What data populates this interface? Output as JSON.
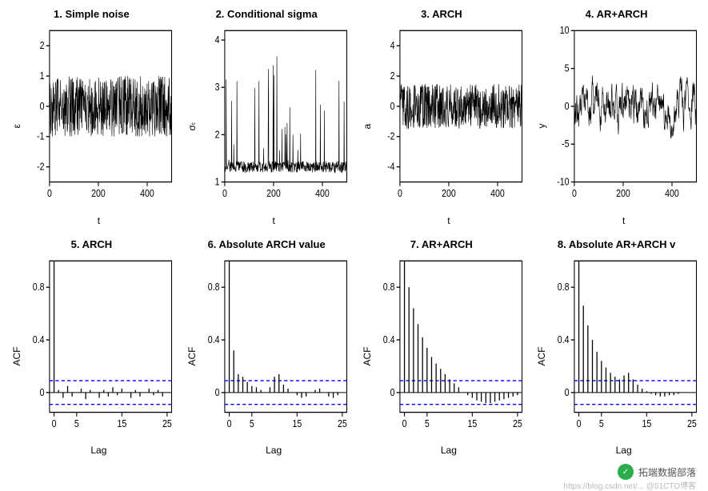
{
  "grid_cols": 4,
  "grid_rows": 2,
  "background_color": "#ffffff",
  "axis_color": "#000000",
  "line_color": "#000000",
  "ci_color": "#0000ff",
  "ci_dash": "4,3",
  "title_fontsize": 13,
  "label_fontsize": 12,
  "watermark": {
    "text": "拓端数据部落",
    "sub": "https://blog.csdn.net/... @51CTO博客",
    "icon_bg": "#2aad4a"
  },
  "panels": [
    {
      "title": "1. Simple noise",
      "type": "line",
      "xlabel": "t",
      "ylabel": "ε",
      "xlim": [
        0,
        500
      ],
      "ylim": [
        -2.5,
        2.5
      ],
      "xticks": [
        0,
        200,
        400
      ],
      "yticks": [
        -2,
        -1,
        0,
        1,
        2
      ],
      "seed": 1,
      "n": 500,
      "amp_center": 0,
      "amp_scale": 1.0
    },
    {
      "title": "2. Conditional sigma",
      "type": "line",
      "xlabel": "t",
      "ylabel": "σₜ",
      "xlim": [
        0,
        500
      ],
      "ylim": [
        1.0,
        4.2
      ],
      "xticks": [
        0,
        200,
        400
      ],
      "yticks": [
        1.0,
        2.0,
        3.0,
        4.0
      ],
      "seed": 2,
      "n": 500,
      "amp_center": 1.2,
      "amp_scale": 0.6,
      "positive_spikes": true
    },
    {
      "title": "3. ARCH",
      "type": "line",
      "xlabel": "t",
      "ylabel": "a",
      "xlim": [
        0,
        500
      ],
      "ylim": [
        -5,
        5
      ],
      "xticks": [
        0,
        200,
        400
      ],
      "yticks": [
        -4,
        -2,
        0,
        2,
        4
      ],
      "seed": 3,
      "n": 500,
      "amp_center": 0,
      "amp_scale": 1.5
    },
    {
      "title": "4. AR+ARCH",
      "type": "line",
      "xlabel": "t",
      "ylabel": "y",
      "xlim": [
        0,
        500
      ],
      "ylim": [
        -10,
        10
      ],
      "xticks": [
        0,
        200,
        400
      ],
      "yticks": [
        -10,
        -5,
        0,
        5,
        10
      ],
      "seed": 4,
      "n": 500,
      "amp_center": 0,
      "amp_scale": 3.0,
      "ar": 0.7
    },
    {
      "title": "5. ARCH",
      "type": "acf",
      "xlabel": "Lag",
      "ylabel": "ACF",
      "xlim": [
        -1,
        26
      ],
      "ylim": [
        -0.15,
        1.0
      ],
      "xticks": [
        0,
        5,
        15,
        25
      ],
      "yticks": [
        0.0,
        0.4,
        0.8
      ],
      "ci": 0.09,
      "acf_values": [
        1.0,
        0.02,
        -0.04,
        0.05,
        -0.03,
        0.0,
        0.03,
        -0.05,
        0.02,
        0.0,
        -0.04,
        0.02,
        -0.03,
        0.04,
        -0.02,
        0.03,
        0.0,
        -0.04,
        0.02,
        -0.03,
        0.0,
        0.03,
        -0.02,
        0.02,
        -0.03,
        0.0
      ]
    },
    {
      "title": "6. Absolute ARCH value",
      "type": "acf",
      "xlabel": "Lag",
      "ylabel": "ACF",
      "xlim": [
        -1,
        26
      ],
      "ylim": [
        -0.15,
        1.0
      ],
      "xticks": [
        0,
        5,
        15,
        25
      ],
      "yticks": [
        0.0,
        0.4,
        0.8
      ],
      "ci": 0.09,
      "acf_values": [
        1.0,
        0.32,
        0.14,
        0.12,
        0.08,
        0.05,
        0.04,
        0.02,
        0.0,
        0.04,
        0.12,
        0.14,
        0.06,
        0.03,
        0.0,
        -0.02,
        -0.04,
        -0.03,
        0.0,
        0.02,
        0.03,
        0.0,
        -0.03,
        -0.04,
        -0.02,
        0.0
      ]
    },
    {
      "title": "7. AR+ARCH",
      "type": "acf",
      "xlabel": "Lag",
      "ylabel": "ACF",
      "xlim": [
        -1,
        26
      ],
      "ylim": [
        -0.15,
        1.0
      ],
      "xticks": [
        0,
        5,
        15,
        25
      ],
      "yticks": [
        0.0,
        0.4,
        0.8
      ],
      "ci": 0.09,
      "acf_values": [
        1.0,
        0.8,
        0.64,
        0.52,
        0.42,
        0.34,
        0.27,
        0.22,
        0.18,
        0.14,
        0.1,
        0.07,
        0.04,
        0.0,
        -0.02,
        -0.04,
        -0.06,
        -0.07,
        -0.08,
        -0.08,
        -0.07,
        -0.06,
        -0.05,
        -0.04,
        -0.03,
        -0.02
      ]
    },
    {
      "title": "8. Absolute AR+ARCH v",
      "type": "acf",
      "xlabel": "Lag",
      "ylabel": "ACF",
      "xlim": [
        -1,
        26
      ],
      "ylim": [
        -0.15,
        1.0
      ],
      "xticks": [
        0,
        5,
        15,
        25
      ],
      "yticks": [
        0.0,
        0.4,
        0.8
      ],
      "ci": 0.09,
      "acf_values": [
        1.0,
        0.66,
        0.51,
        0.4,
        0.31,
        0.24,
        0.19,
        0.15,
        0.12,
        0.1,
        0.13,
        0.15,
        0.1,
        0.06,
        0.03,
        0.01,
        -0.01,
        -0.02,
        -0.03,
        -0.03,
        -0.02,
        -0.02,
        -0.01,
        0.0,
        0.0,
        0.0
      ]
    }
  ]
}
